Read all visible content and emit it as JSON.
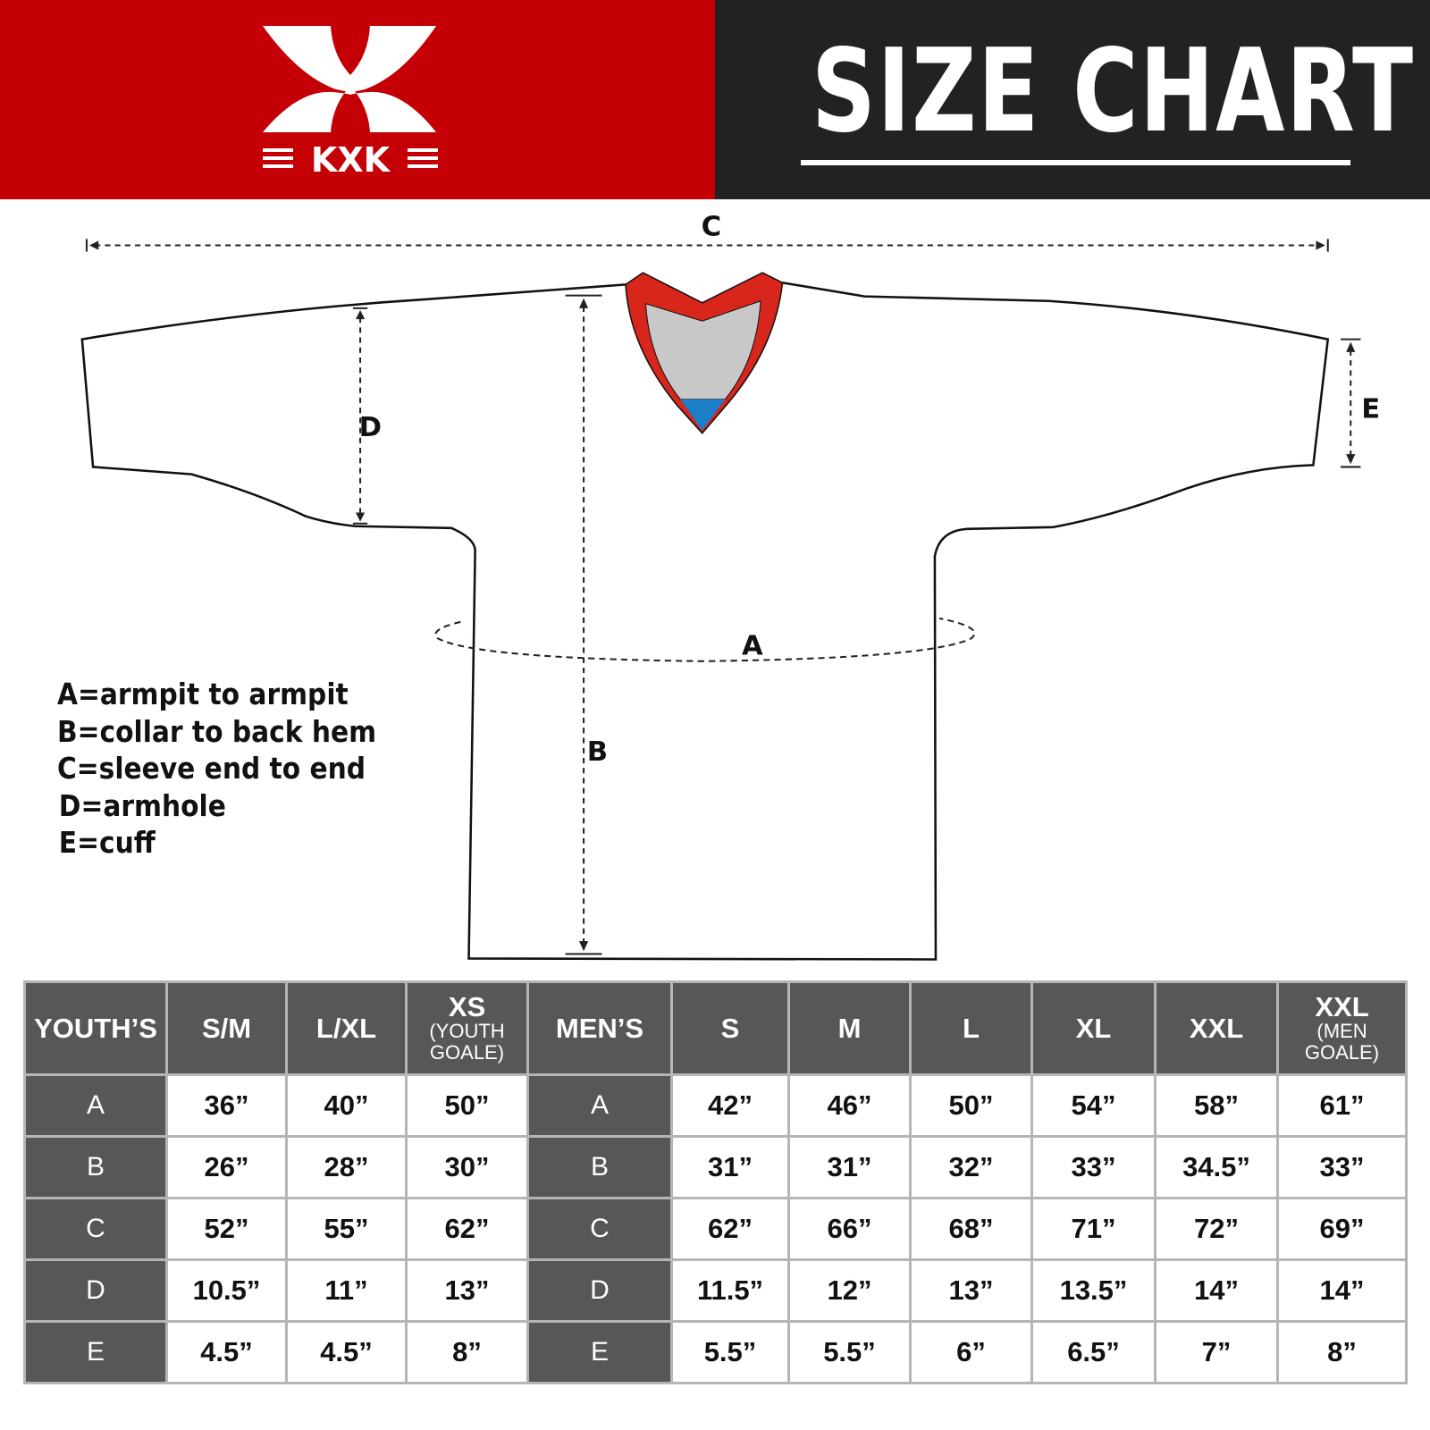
{
  "header": {
    "brand": "KXK",
    "title": "SIZE CHART",
    "colors": {
      "brand_red": "#c40006",
      "dark": "#222222"
    }
  },
  "diagram": {
    "labels": {
      "a": "A",
      "b": "B",
      "c": "C",
      "d": "D",
      "e": "E"
    },
    "colors": {
      "collar_red": "#d9261c",
      "collar_inner": "#c8c8c8",
      "collar_blue": "#1a7fc8"
    }
  },
  "legend": [
    "A=armpit to armpit",
    "B=collar to back hem",
    "C=sleeve end to end",
    "D=armhole",
    "E=cuff"
  ],
  "table": {
    "youth_header": "YOUTH’S",
    "youth_sizes": [
      {
        "main": "S/M",
        "sub": ""
      },
      {
        "main": "L/XL",
        "sub": ""
      },
      {
        "main": "XS",
        "sub": "(YOUTH GOALE)"
      }
    ],
    "men_header": "MEN’S",
    "men_sizes": [
      {
        "main": "S",
        "sub": ""
      },
      {
        "main": "M",
        "sub": ""
      },
      {
        "main": "L",
        "sub": ""
      },
      {
        "main": "XL",
        "sub": ""
      },
      {
        "main": "XXL",
        "sub": ""
      },
      {
        "main": "XXL",
        "sub": "(MEN GOALE)"
      }
    ],
    "rows": [
      {
        "label": "A",
        "youth": [
          "36”",
          "40”",
          "50”"
        ],
        "men": [
          "42”",
          "46”",
          "50”",
          "54”",
          "58”",
          "61”"
        ]
      },
      {
        "label": "B",
        "youth": [
          "26”",
          "28”",
          "30”"
        ],
        "men": [
          "31”",
          "31”",
          "32”",
          "33”",
          "34.5”",
          "33”"
        ]
      },
      {
        "label": "C",
        "youth": [
          "52”",
          "55”",
          "62”"
        ],
        "men": [
          "62”",
          "66”",
          "68”",
          "71”",
          "72”",
          "69”"
        ]
      },
      {
        "label": "D",
        "youth": [
          "10.5”",
          "11”",
          "13”"
        ],
        "men": [
          "11.5”",
          "12”",
          "13”",
          "13.5”",
          "14”",
          "14”"
        ]
      },
      {
        "label": "E",
        "youth": [
          "4.5”",
          "4.5”",
          "8”"
        ],
        "men": [
          "5.5”",
          "5.5”",
          "6”",
          "6.5”",
          "7”",
          "8”"
        ]
      }
    ]
  }
}
